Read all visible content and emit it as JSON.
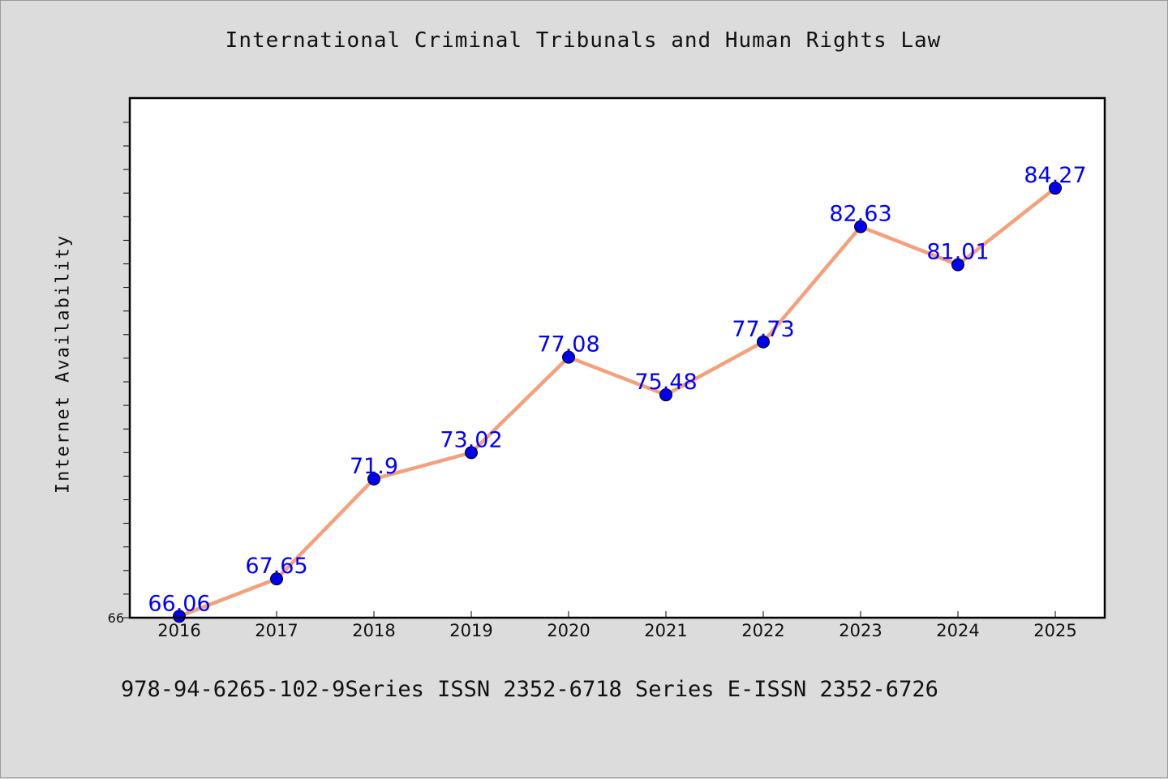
{
  "chart_data": {
    "type": "line",
    "title": "International Criminal Tribunals and Human Rights Law",
    "xlabel": "",
    "ylabel": "Internet Availability",
    "x": [
      "2016",
      "2017",
      "2018",
      "2019",
      "2020",
      "2021",
      "2022",
      "2023",
      "2024",
      "2025"
    ],
    "series": [
      {
        "values": [
          66.06,
          67.65,
          71.9,
          73.02,
          77.08,
          75.48,
          77.73,
          82.63,
          81.01,
          84.27
        ]
      }
    ],
    "data_labels": [
      "66.06",
      "67.65",
      "71.9",
      "73.02",
      "77.08",
      "75.48",
      "77.73",
      "82.63",
      "81.01",
      "84.27"
    ],
    "ylim": [
      66,
      88.1
    ],
    "yticks_labeled": [
      "66"
    ],
    "grid": false,
    "colors": {
      "line": "#f4a07a",
      "marker": "#0000ee",
      "label": "#0000ff",
      "frame": "#000000",
      "plot_bg": "#ffffff",
      "page_bg": "#dcdcdc"
    }
  },
  "footer": "978-94-6265-102-9Series ISSN 2352-6718 Series E-ISSN 2352-6726"
}
